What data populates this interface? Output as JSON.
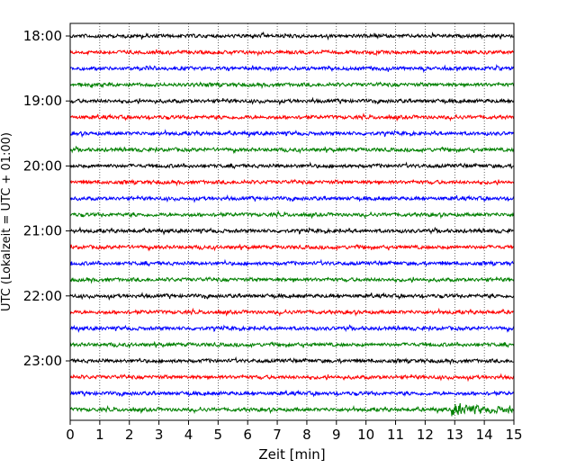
{
  "chart_data": {
    "type": "line",
    "title": "",
    "xlabel": "Zeit  [min]",
    "ylabel": "UTC (Lokalzeit = UTC + 01:00)",
    "xlim": [
      0,
      15
    ],
    "x_ticks": [
      "0",
      "1",
      "2",
      "3",
      "4",
      "5",
      "6",
      "7",
      "8",
      "9",
      "10",
      "11",
      "12",
      "13",
      "14",
      "15"
    ],
    "y_tick_labels": [
      "18:00",
      "19:00",
      "20:00",
      "21:00",
      "22:00",
      "23:00"
    ],
    "trace_start": "18:00",
    "trace_interval_minutes": 15,
    "trace_count": 24,
    "color_cycle": [
      "#000000",
      "#ff0000",
      "#0000ff",
      "#008000"
    ],
    "vertical_grid": true,
    "grid_style": "dotted",
    "notable_event": {
      "trace": "23:45",
      "x_start": 12.9,
      "x_end": 15
    }
  }
}
